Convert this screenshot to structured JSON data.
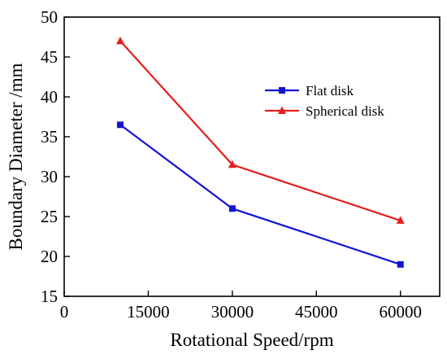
{
  "chart_data": {
    "type": "line",
    "title": "",
    "xlabel": "Rotational Speed/rpm",
    "ylabel": "Boundary Diameter /mm",
    "xlim": [
      0,
      67000
    ],
    "ylim": [
      15,
      50
    ],
    "xticks": [
      0,
      15000,
      30000,
      45000,
      60000
    ],
    "yticks": [
      15,
      20,
      25,
      30,
      35,
      40,
      45,
      50
    ],
    "x": [
      10000,
      30000,
      60000
    ],
    "legend_position": "upper-right",
    "grid": false,
    "series": [
      {
        "name": "Flat disk",
        "values": [
          36.5,
          26,
          19
        ],
        "color": "#1414d2",
        "marker": "square"
      },
      {
        "name": "Spherical disk",
        "values": [
          47,
          31.5,
          24.5
        ],
        "color": "#e61e1e",
        "marker": "triangle"
      }
    ]
  }
}
